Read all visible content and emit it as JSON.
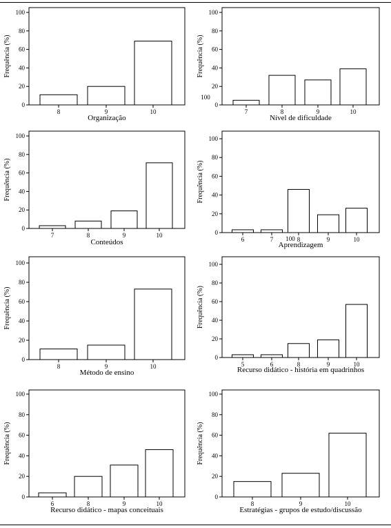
{
  "common": {
    "ylabel": "Frequência (%)",
    "yticks": [
      "0",
      "20",
      "40",
      "60",
      "80",
      "100"
    ]
  },
  "chart_data": [
    {
      "type": "bar",
      "title": "",
      "xlabel": "Organização",
      "ylabel": "Frequência (%)",
      "ylim": [
        0,
        100
      ],
      "grid": false,
      "categories": [
        "8",
        "9",
        "10"
      ],
      "values": [
        11,
        20,
        69
      ]
    },
    {
      "type": "bar",
      "title": "",
      "xlabel": "Nível de dificuldade",
      "ylabel": "Frequência (%)",
      "ylim": [
        0,
        100
      ],
      "grid": false,
      "categories": [
        "7",
        "8",
        "9",
        "10"
      ],
      "values": [
        5,
        32,
        27,
        39
      ]
    },
    {
      "type": "bar",
      "title": "",
      "xlabel": "Conteúdos",
      "ylabel": "Frequência (%)",
      "ylim": [
        0,
        100
      ],
      "grid": false,
      "categories": [
        "7",
        "8",
        "9",
        "10"
      ],
      "values": [
        3,
        8,
        19,
        71
      ]
    },
    {
      "type": "bar",
      "title": "",
      "xlabel": "Aprendizagem",
      "ylabel": "Frequência (%)",
      "ylim": [
        0,
        100
      ],
      "grid": false,
      "categories": [
        "6",
        "7",
        "8",
        "9",
        "10"
      ],
      "values": [
        3,
        3,
        46,
        19,
        26
      ]
    },
    {
      "type": "bar",
      "title": "",
      "xlabel": "Método de ensino",
      "ylabel": "Frequência (%)",
      "ylim": [
        0,
        100
      ],
      "grid": false,
      "categories": [
        "8",
        "9",
        "10"
      ],
      "values": [
        11,
        15,
        73
      ]
    },
    {
      "type": "bar",
      "title": "",
      "xlabel": "Recurso didático - história em quadrinhos",
      "ylabel": "Frequência (%)",
      "ylim": [
        0,
        100
      ],
      "grid": false,
      "categories": [
        "5",
        "6",
        "8",
        "9",
        "10"
      ],
      "values": [
        3,
        3,
        15,
        19,
        57
      ]
    },
    {
      "type": "bar",
      "title": "",
      "xlabel": "Recurso didático - mapas conceituais",
      "ylabel": "Frequência (%)",
      "ylim": [
        0,
        100
      ],
      "grid": false,
      "categories": [
        "6",
        "8",
        "9",
        "10"
      ],
      "values": [
        4,
        20,
        31,
        46
      ]
    },
    {
      "type": "bar",
      "title": "",
      "xlabel": "Estratégias - grupos de estudo/discussão",
      "ylabel": "Frequência (%)",
      "ylim": [
        0,
        100
      ],
      "grid": false,
      "categories": [
        "8",
        "9",
        "10"
      ],
      "values": [
        15,
        23,
        62
      ]
    }
  ],
  "stray_labels": [
    "100",
    "100"
  ]
}
